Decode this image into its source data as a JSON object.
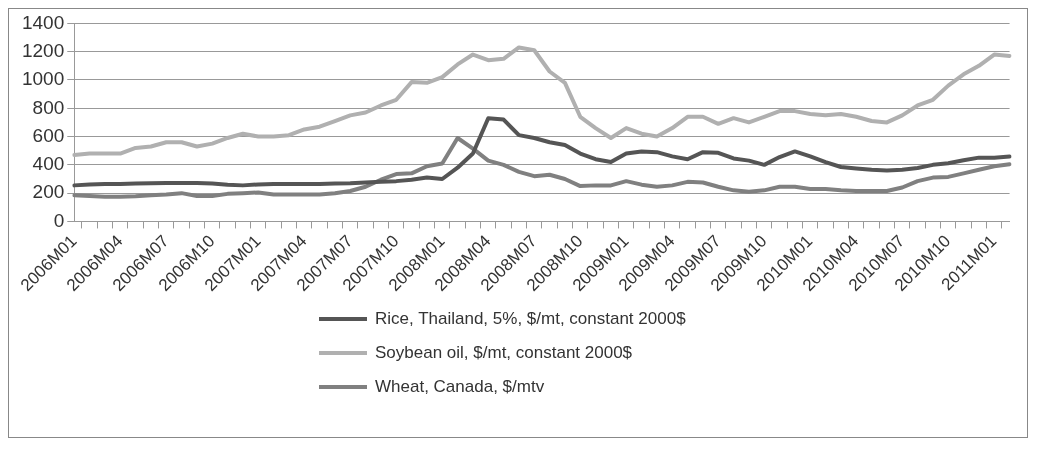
{
  "chart_data": {
    "type": "line",
    "categories": [
      "2006M01",
      null,
      null,
      "2006M04",
      null,
      null,
      "2006M07",
      null,
      null,
      "2006M10",
      null,
      null,
      "2007M01",
      null,
      null,
      "2007M04",
      null,
      null,
      "2007M07",
      null,
      null,
      "2007M10",
      null,
      null,
      "2008M01",
      null,
      null,
      "2008M04",
      null,
      null,
      "2008M07",
      null,
      null,
      "2008M10",
      null,
      null,
      "2009M01",
      null,
      null,
      "2009M04",
      null,
      null,
      "2009M07",
      null,
      null,
      "2009M10",
      null,
      null,
      "2010M01",
      null,
      null,
      "2010M04",
      null,
      null,
      "2010M07",
      null,
      null,
      "2010M10",
      null,
      null,
      "2011M01",
      null
    ],
    "series": [
      {
        "name": "Rice, Thailand, 5%, $/mt, constant 2000$",
        "color": "#555555",
        "values": [
          255,
          262,
          265,
          265,
          268,
          270,
          272,
          272,
          272,
          268,
          260,
          255,
          262,
          265,
          265,
          265,
          265,
          268,
          270,
          275,
          280,
          285,
          295,
          310,
          300,
          380,
          480,
          730,
          720,
          610,
          590,
          560,
          540,
          480,
          440,
          420,
          480,
          495,
          490,
          460,
          440,
          490,
          485,
          445,
          430,
          400,
          455,
          495,
          460,
          420,
          385,
          375,
          365,
          360,
          365,
          378,
          400,
          411,
          432,
          451,
          451,
          459
        ]
      },
      {
        "name": "Soybean oil, $/mt, constant 2000$",
        "color": "#b0b0b0",
        "values": [
          470,
          480,
          480,
          480,
          520,
          530,
          560,
          560,
          530,
          550,
          590,
          620,
          600,
          600,
          610,
          650,
          670,
          710,
          750,
          770,
          820,
          860,
          985,
          980,
          1020,
          1110,
          1180,
          1140,
          1150,
          1230,
          1210,
          1060,
          980,
          740,
          660,
          590,
          660,
          620,
          600,
          660,
          740,
          740,
          690,
          730,
          700,
          740,
          780,
          780,
          760,
          750,
          760,
          740,
          710,
          700,
          750,
          820,
          860,
          960,
          1040,
          1100,
          1180,
          1170
        ]
      },
      {
        "name": "Wheat, Canada, $/mtv",
        "color": "#808080",
        "values": [
          185,
          180,
          175,
          175,
          178,
          185,
          190,
          200,
          180,
          180,
          195,
          200,
          205,
          190,
          190,
          190,
          190,
          200,
          215,
          245,
          295,
          335,
          340,
          390,
          410,
          590,
          515,
          430,
          400,
          350,
          320,
          330,
          300,
          250,
          255,
          255,
          285,
          260,
          245,
          255,
          280,
          275,
          245,
          220,
          210,
          220,
          245,
          245,
          230,
          230,
          220,
          215,
          215,
          215,
          240,
          285,
          310,
          315,
          340,
          365,
          390,
          405
        ]
      }
    ],
    "ylim": [
      0,
      1400
    ],
    "yticks": [
      0,
      200,
      400,
      600,
      800,
      1000,
      1200,
      1400
    ],
    "grid": "y",
    "legend": "bottom",
    "marker": "none",
    "line_style": "solid"
  }
}
